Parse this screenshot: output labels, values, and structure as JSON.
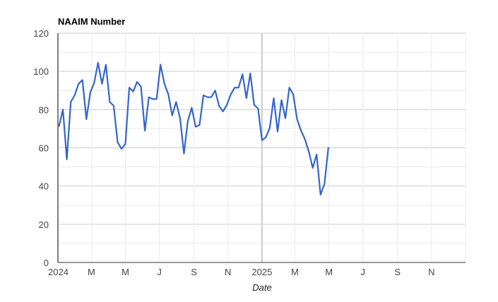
{
  "chart_data": {
    "type": "line",
    "title": "NAAIM Number",
    "xlabel": "Date",
    "ylabel": "",
    "ylim": [
      0,
      120
    ],
    "yticks": [
      0,
      20,
      40,
      60,
      80,
      100,
      120
    ],
    "x_range": [
      "2024-01-01",
      "2026-01-01"
    ],
    "xticks": [
      {
        "date": "2024-01-01",
        "label": "2024"
      },
      {
        "date": "2024-03-01",
        "label": "M"
      },
      {
        "date": "2024-05-01",
        "label": "M"
      },
      {
        "date": "2024-07-01",
        "label": "J"
      },
      {
        "date": "2024-09-01",
        "label": "S"
      },
      {
        "date": "2024-11-01",
        "label": "N"
      },
      {
        "date": "2025-01-01",
        "label": "2025"
      },
      {
        "date": "2025-03-01",
        "label": "M"
      },
      {
        "date": "2025-05-01",
        "label": "M"
      },
      {
        "date": "2025-07-01",
        "label": "J"
      },
      {
        "date": "2025-09-01",
        "label": "S"
      },
      {
        "date": "2025-11-01",
        "label": "N"
      }
    ],
    "grid": true,
    "colors": {
      "line": "#3366cc",
      "grid": "#cccccc",
      "minor_grid": "#ebebeb",
      "axis": "#333333",
      "year_marker": "#cccccc"
    },
    "series": [
      {
        "x": [
          "2024-01-03",
          "2024-01-10",
          "2024-01-17",
          "2024-01-24",
          "2024-01-31",
          "2024-02-07",
          "2024-02-14",
          "2024-02-21",
          "2024-02-28",
          "2024-03-06",
          "2024-03-13",
          "2024-03-20",
          "2024-03-27",
          "2024-04-03",
          "2024-04-10",
          "2024-04-17",
          "2024-04-24",
          "2024-05-01",
          "2024-05-08",
          "2024-05-15",
          "2024-05-22",
          "2024-05-29",
          "2024-06-05",
          "2024-06-12",
          "2024-06-19",
          "2024-06-26",
          "2024-07-03",
          "2024-07-10",
          "2024-07-17",
          "2024-07-24",
          "2024-07-31",
          "2024-08-07",
          "2024-08-14",
          "2024-08-21",
          "2024-08-28",
          "2024-09-04",
          "2024-09-11",
          "2024-09-18",
          "2024-09-25",
          "2024-10-02",
          "2024-10-09",
          "2024-10-16",
          "2024-10-23",
          "2024-10-30",
          "2024-11-06",
          "2024-11-13",
          "2024-11-20",
          "2024-11-27",
          "2024-12-04",
          "2024-12-11",
          "2024-12-18",
          "2024-12-25",
          "2025-01-01",
          "2025-01-08",
          "2025-01-15",
          "2025-01-22",
          "2025-01-29",
          "2025-02-05",
          "2025-02-12",
          "2025-02-19",
          "2025-02-26",
          "2025-03-05",
          "2025-03-12",
          "2025-03-19",
          "2025-03-26",
          "2025-04-02",
          "2025-04-09",
          "2025-04-16",
          "2025-04-23",
          "2025-04-30"
        ],
        "values": [
          71.5,
          80,
          54,
          84,
          87.5,
          93.5,
          95.5,
          75,
          89,
          94,
          104.5,
          93.5,
          103.5,
          84,
          82,
          63,
          59.5,
          62,
          91.5,
          89.5,
          94.5,
          92,
          69,
          86.5,
          85.5,
          85.5,
          103.5,
          93.5,
          88,
          77,
          84,
          75.5,
          57,
          74,
          81,
          71,
          72,
          87.5,
          86.5,
          86.5,
          90,
          82,
          79,
          82.5,
          88,
          91.5,
          91.5,
          98.5,
          86,
          99,
          82.5,
          80.5,
          64,
          65.5,
          70.5,
          86,
          68.5,
          85,
          75.5,
          91.5,
          88,
          75,
          69,
          64.5,
          58,
          49.5,
          56.5,
          35.5,
          41,
          60
        ]
      }
    ]
  }
}
